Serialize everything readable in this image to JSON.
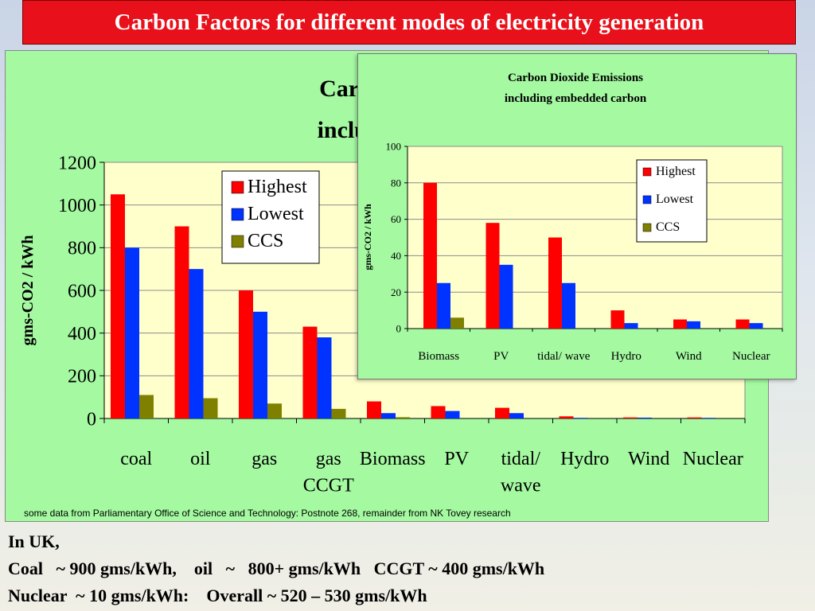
{
  "page_title": "Carbon Factors for different modes of electricity generation",
  "source_note": "some data from Parliamentary Office of Science and Technology:  Postnote 268, remainder from  NK Tovey research",
  "notes": [
    "In UK,",
    "Coal   ~ 900 gms/kWh,    oil   ~   800+ gms/kWh   CCGT ~ 400 gms/kWh",
    "Nuclear  ~ 10 gms/kWh:    Overall ~ 520 – 530 gms/kWh"
  ],
  "colors": {
    "highest": "#ff0000",
    "lowest": "#0033ff",
    "ccs": "#808000",
    "plot_bg": "#ffffcc",
    "panel_bg": "#a4f9a1",
    "title_bg": "#e8101a"
  },
  "chart_data": [
    {
      "type": "bar",
      "title_lines": [
        "Carbon Di",
        "including e"
      ],
      "ylabel": "gms-CO2 / kWh",
      "ylim": [
        0,
        1200
      ],
      "yticks": [
        0,
        200,
        400,
        600,
        800,
        1000,
        1200
      ],
      "categories": [
        "coal",
        "oil",
        "gas",
        "gas CCGT",
        "Biomass",
        "PV",
        "tidal/ wave",
        "Hydro",
        "Wind",
        "Nuclear"
      ],
      "category_lines": [
        [
          "coal"
        ],
        [
          "oil"
        ],
        [
          "gas"
        ],
        [
          "gas",
          "CCGT"
        ],
        [
          "Biomass"
        ],
        [
          "PV"
        ],
        [
          "tidal/",
          "wave"
        ],
        [
          "Hydro"
        ],
        [
          "Wind"
        ],
        [
          "Nuclear"
        ]
      ],
      "series": [
        {
          "name": "Highest",
          "values": [
            1050,
            900,
            600,
            430,
            80,
            58,
            50,
            10,
            5,
            5
          ]
        },
        {
          "name": "Lowest",
          "values": [
            800,
            700,
            500,
            380,
            25,
            35,
            25,
            3,
            4,
            3
          ]
        },
        {
          "name": "CCS",
          "values": [
            110,
            95,
            70,
            45,
            6,
            0,
            0,
            0,
            0,
            0
          ]
        }
      ],
      "legend_position": "top-left inside plot",
      "grid": true
    },
    {
      "type": "bar",
      "title_lines": [
        "Carbon Dioxide Emissions",
        "including embedded carbon"
      ],
      "ylabel": "gms-CO2 / kWh",
      "ylim": [
        0,
        100
      ],
      "yticks": [
        0,
        20,
        40,
        60,
        80,
        100
      ],
      "categories": [
        "Biomass",
        "PV",
        "tidal/ wave",
        "Hydro",
        "Wind",
        "Nuclear"
      ],
      "series": [
        {
          "name": "Highest",
          "values": [
            80,
            58,
            50,
            10,
            5,
            5
          ]
        },
        {
          "name": "Lowest",
          "values": [
            25,
            35,
            25,
            3,
            4,
            3
          ]
        },
        {
          "name": "CCS",
          "values": [
            6,
            0,
            0,
            0,
            0,
            0
          ]
        }
      ],
      "legend_position": "top-right",
      "grid": true
    }
  ]
}
